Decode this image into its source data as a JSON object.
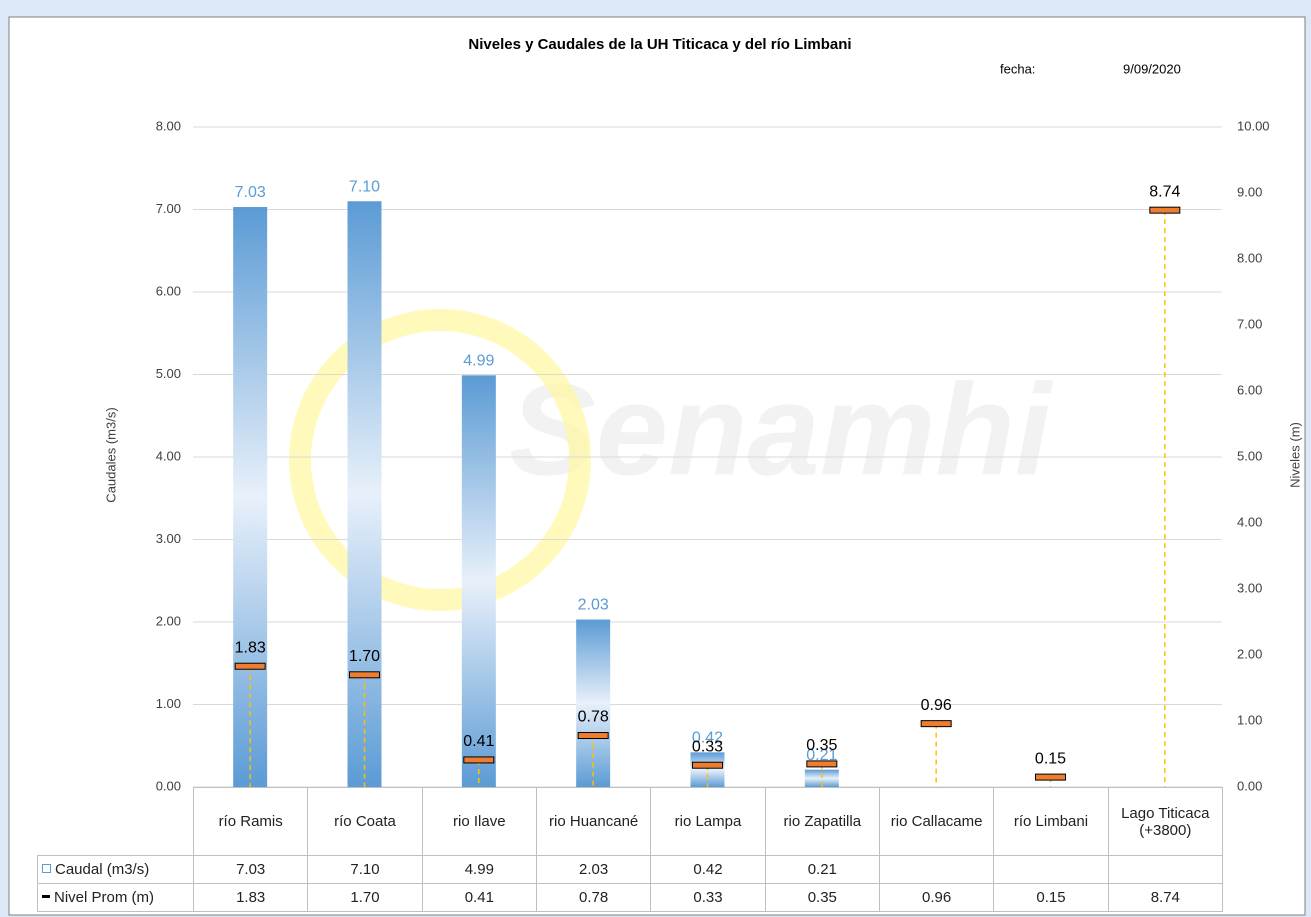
{
  "chart_data": {
    "type": "bar-line",
    "title": "Niveles y Caudales de la UH Titicaca y del río Limbani",
    "date_label": "fecha:",
    "date": "9/09/2020",
    "watermark": "Senamhi",
    "y_label": "Caudales (m3/s)",
    "y2_label": "Niveles (m)",
    "categories": [
      "río Ramis",
      "río Coata",
      "rio Ilave",
      "rio Huancané",
      "rio Lampa",
      "rio Zapatilla",
      "rio Callacame",
      "río Limbani",
      "Lago Titicaca (+3800)"
    ],
    "series": [
      {
        "name": "Caudal (m3/s)",
        "kind": "bar",
        "color": "#5b9bd5",
        "values": [
          7.03,
          7.1,
          4.99,
          2.03,
          0.42,
          0.21,
          null,
          null,
          null
        ],
        "value_labels": [
          "7.03",
          "7.10",
          "4.99",
          "2.03",
          "0.42",
          "0.21",
          null,
          null,
          null
        ]
      },
      {
        "name": "Nivel Prom (m)",
        "kind": "marker",
        "axis": "y2",
        "color": "#ed7d31",
        "values": [
          1.83,
          1.7,
          0.41,
          0.78,
          0.33,
          0.35,
          0.96,
          0.15,
          8.74
        ],
        "value_labels": [
          "1.83",
          "1.70",
          "0.41",
          "0.78",
          "0.33",
          "0.35",
          "0.96",
          "0.15",
          "8.74"
        ]
      }
    ],
    "ylim": [
      0,
      8
    ],
    "yticks": [
      {
        "value": 0,
        "label": "0.00"
      },
      {
        "value": 1,
        "label": "1.00"
      },
      {
        "value": 2,
        "label": "2.00"
      },
      {
        "value": 3,
        "label": "3.00"
      },
      {
        "value": 4,
        "label": "4.00"
      },
      {
        "value": 5,
        "label": "5.00"
      },
      {
        "value": 6,
        "label": "6.00"
      },
      {
        "value": 7,
        "label": "7.00"
      },
      {
        "value": 8,
        "label": "8.00"
      }
    ],
    "y2lim": [
      0,
      10
    ],
    "y2ticks": [
      {
        "value": 0,
        "label": "0.00"
      },
      {
        "value": 1,
        "label": "1.00"
      },
      {
        "value": 2,
        "label": "2.00"
      },
      {
        "value": 3,
        "label": "3.00"
      },
      {
        "value": 4,
        "label": "4.00"
      },
      {
        "value": 5,
        "label": "5.00"
      },
      {
        "value": 6,
        "label": "6.00"
      },
      {
        "value": 7,
        "label": "7.00"
      },
      {
        "value": 8,
        "label": "8.00"
      },
      {
        "value": 9,
        "label": "9.00"
      },
      {
        "value": 10,
        "label": "10.00"
      }
    ],
    "grid": true
  }
}
